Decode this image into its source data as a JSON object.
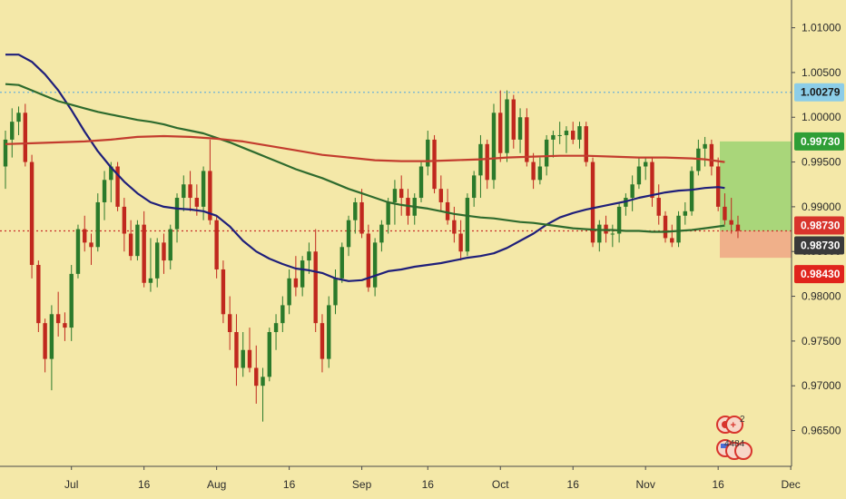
{
  "chart_data": {
    "type": "candlestick",
    "title": "",
    "ylim": [
      0.961,
      1.0131
    ],
    "y_ticks": [
      "0.96500",
      "0.97000",
      "0.97500",
      "0.98000",
      "0.98500",
      "0.99000",
      "0.99500",
      "1.00000",
      "1.00500",
      "1.01000"
    ],
    "x_tick_labels": [
      {
        "label": "Jul",
        "index": 10
      },
      {
        "label": "16",
        "index": 21
      },
      {
        "label": "Aug",
        "index": 32
      },
      {
        "label": "16",
        "index": 43
      },
      {
        "label": "Sep",
        "index": 54
      },
      {
        "label": "16",
        "index": 64
      },
      {
        "label": "Oct",
        "index": 75
      },
      {
        "label": "16",
        "index": 86
      },
      {
        "label": "Nov",
        "index": 97
      },
      {
        "label": "16",
        "index": 108
      },
      {
        "label": "Dec",
        "index": 119
      }
    ],
    "candles": [
      [
        0.9945,
        0.9985,
        0.992,
        0.9975
      ],
      [
        0.9975,
        1.001,
        0.9955,
        0.9995
      ],
      [
        0.9995,
        1.0012,
        0.998,
        1.0005
      ],
      [
        1.0005,
        1.0015,
        0.9945,
        0.995
      ],
      [
        0.995,
        0.9958,
        0.982,
        0.9835
      ],
      [
        0.9835,
        0.984,
        0.976,
        0.977
      ],
      [
        0.977,
        0.9775,
        0.9715,
        0.973
      ],
      [
        0.973,
        0.979,
        0.9695,
        0.978
      ],
      [
        0.978,
        0.9805,
        0.9755,
        0.977
      ],
      [
        0.977,
        0.9782,
        0.975,
        0.9765
      ],
      [
        0.9765,
        0.9835,
        0.975,
        0.9825
      ],
      [
        0.9825,
        0.988,
        0.982,
        0.9875
      ],
      [
        0.9875,
        0.989,
        0.985,
        0.986
      ],
      [
        0.986,
        0.987,
        0.9835,
        0.9855
      ],
      [
        0.9855,
        0.9915,
        0.985,
        0.9905
      ],
      [
        0.9905,
        0.994,
        0.9885,
        0.993
      ],
      [
        0.993,
        0.995,
        0.9905,
        0.9945
      ],
      [
        0.9945,
        0.995,
        0.9895,
        0.99
      ],
      [
        0.99,
        0.991,
        0.985,
        0.987
      ],
      [
        0.987,
        0.9885,
        0.984,
        0.9845
      ],
      [
        0.9845,
        0.9885,
        0.984,
        0.988
      ],
      [
        0.988,
        0.9895,
        0.981,
        0.9815
      ],
      [
        0.9815,
        0.9865,
        0.9805,
        0.982
      ],
      [
        0.982,
        0.9865,
        0.981,
        0.986
      ],
      [
        0.986,
        0.987,
        0.9825,
        0.984
      ],
      [
        0.984,
        0.988,
        0.983,
        0.9875
      ],
      [
        0.9875,
        0.9915,
        0.986,
        0.991
      ],
      [
        0.991,
        0.9935,
        0.9895,
        0.9925
      ],
      [
        0.9925,
        0.994,
        0.9895,
        0.991
      ],
      [
        0.991,
        0.9925,
        0.989,
        0.99
      ],
      [
        0.99,
        0.9945,
        0.9885,
        0.994
      ],
      [
        0.994,
        0.9975,
        0.988,
        0.9885
      ],
      [
        0.9885,
        0.989,
        0.982,
        0.983
      ],
      [
        0.983,
        0.984,
        0.977,
        0.978
      ],
      [
        0.978,
        0.98,
        0.974,
        0.976
      ],
      [
        0.976,
        0.978,
        0.97,
        0.972
      ],
      [
        0.972,
        0.976,
        0.971,
        0.974
      ],
      [
        0.974,
        0.9765,
        0.9715,
        0.972
      ],
      [
        0.972,
        0.9745,
        0.968,
        0.97
      ],
      [
        0.97,
        0.972,
        0.966,
        0.971
      ],
      [
        0.971,
        0.9765,
        0.9705,
        0.976
      ],
      [
        0.976,
        0.978,
        0.974,
        0.977
      ],
      [
        0.977,
        0.98,
        0.976,
        0.979
      ],
      [
        0.979,
        0.983,
        0.978,
        0.982
      ],
      [
        0.982,
        0.9845,
        0.98,
        0.981
      ],
      [
        0.981,
        0.9845,
        0.98,
        0.984
      ],
      [
        0.984,
        0.986,
        0.9825,
        0.985
      ],
      [
        0.985,
        0.9875,
        0.976,
        0.977
      ],
      [
        0.977,
        0.978,
        0.9715,
        0.973
      ],
      [
        0.973,
        0.98,
        0.972,
        0.979
      ],
      [
        0.979,
        0.983,
        0.978,
        0.982
      ],
      [
        0.982,
        0.986,
        0.9815,
        0.9855
      ],
      [
        0.9855,
        0.989,
        0.9845,
        0.9885
      ],
      [
        0.9885,
        0.991,
        0.987,
        0.9905
      ],
      [
        0.9905,
        0.992,
        0.9865,
        0.987
      ],
      [
        0.987,
        0.988,
        0.9805,
        0.981
      ],
      [
        0.981,
        0.9865,
        0.98,
        0.986
      ],
      [
        0.986,
        0.9885,
        0.985,
        0.988
      ],
      [
        0.988,
        0.991,
        0.987,
        0.9905
      ],
      [
        0.9905,
        0.993,
        0.988,
        0.992
      ],
      [
        0.992,
        0.9935,
        0.989,
        0.991
      ],
      [
        0.991,
        0.992,
        0.988,
        0.989
      ],
      [
        0.989,
        0.9915,
        0.988,
        0.991
      ],
      [
        0.991,
        0.995,
        0.9905,
        0.9945
      ],
      [
        0.9945,
        0.9985,
        0.9935,
        0.9975
      ],
      [
        0.9975,
        0.998,
        0.9915,
        0.992
      ],
      [
        0.992,
        0.9935,
        0.9895,
        0.9905
      ],
      [
        0.9905,
        0.992,
        0.988,
        0.9885
      ],
      [
        0.9885,
        0.99,
        0.986,
        0.987
      ],
      [
        0.987,
        0.9885,
        0.984,
        0.985
      ],
      [
        0.985,
        0.9915,
        0.9845,
        0.991
      ],
      [
        0.991,
        0.994,
        0.99,
        0.9935
      ],
      [
        0.9935,
        0.998,
        0.991,
        0.997
      ],
      [
        0.997,
        0.9975,
        0.992,
        0.993
      ],
      [
        0.993,
        1.0015,
        0.992,
        1.0005
      ],
      [
        1.0005,
        1.003,
        0.995,
        0.996
      ],
      [
        0.996,
        1.003,
        0.995,
        1.002
      ],
      [
        1.002,
        1.0025,
        0.9965,
        0.9975
      ],
      [
        0.9975,
        1.001,
        0.996,
        1.0
      ],
      [
        1.0,
        1.001,
        0.9945,
        0.995
      ],
      [
        0.995,
        0.996,
        0.992,
        0.993
      ],
      [
        0.993,
        0.9955,
        0.9925,
        0.9945
      ],
      [
        0.9945,
        0.998,
        0.9935,
        0.9975
      ],
      [
        0.9975,
        0.9985,
        0.9955,
        0.998
      ],
      [
        0.998,
        0.9995,
        0.997,
        0.998
      ],
      [
        0.998,
        0.999,
        0.996,
        0.9985
      ],
      [
        0.9985,
        0.9995,
        0.997,
        0.9975
      ],
      [
        0.9975,
        0.9995,
        0.9965,
        0.999
      ],
      [
        0.999,
        0.9995,
        0.9945,
        0.995
      ],
      [
        0.995,
        0.9955,
        0.9855,
        0.986
      ],
      [
        0.986,
        0.9885,
        0.985,
        0.988
      ],
      [
        0.988,
        0.989,
        0.986,
        0.987
      ],
      [
        0.987,
        0.988,
        0.9855,
        0.987
      ],
      [
        0.987,
        0.9905,
        0.986,
        0.99
      ],
      [
        0.99,
        0.9915,
        0.989,
        0.991
      ],
      [
        0.991,
        0.9935,
        0.9895,
        0.9925
      ],
      [
        0.9925,
        0.9955,
        0.992,
        0.9945
      ],
      [
        0.9945,
        0.9955,
        0.993,
        0.995
      ],
      [
        0.995,
        0.9955,
        0.99,
        0.991
      ],
      [
        0.991,
        0.9925,
        0.988,
        0.989
      ],
      [
        0.989,
        0.9895,
        0.986,
        0.9865
      ],
      [
        0.9865,
        0.988,
        0.9855,
        0.986
      ],
      [
        0.986,
        0.9895,
        0.9855,
        0.989
      ],
      [
        0.989,
        0.9905,
        0.988,
        0.9895
      ],
      [
        0.9895,
        0.9945,
        0.989,
        0.994
      ],
      [
        0.994,
        0.9975,
        0.9935,
        0.9965
      ],
      [
        0.9965,
        0.9978,
        0.9945,
        0.997
      ],
      [
        0.997,
        0.9975,
        0.9935,
        0.9945
      ],
      [
        0.9945,
        0.9955,
        0.9895,
        0.99
      ],
      [
        0.99,
        0.9915,
        0.988,
        0.9885
      ],
      [
        0.9885,
        0.991,
        0.987,
        0.988
      ],
      [
        0.988,
        0.989,
        0.9865,
        0.9873
      ]
    ],
    "indicators": [
      {
        "color": "#1f1f7a",
        "points": [
          [
            0,
            1.007
          ],
          [
            2,
            1.007
          ],
          [
            4,
            1.0062
          ],
          [
            6,
            1.0048
          ],
          [
            8,
            1.003
          ],
          [
            10,
            1.0008
          ],
          [
            12,
            0.9984
          ],
          [
            14,
            0.9962
          ],
          [
            16,
            0.9944
          ],
          [
            18,
            0.9928
          ],
          [
            20,
            0.9915
          ],
          [
            22,
            0.9905
          ],
          [
            24,
            0.99
          ],
          [
            26,
            0.9898
          ],
          [
            28,
            0.9897
          ],
          [
            30,
            0.9895
          ],
          [
            32,
            0.989
          ],
          [
            34,
            0.9878
          ],
          [
            36,
            0.9862
          ],
          [
            38,
            0.985
          ],
          [
            40,
            0.9842
          ],
          [
            42,
            0.9836
          ],
          [
            44,
            0.9831
          ],
          [
            46,
            0.9829
          ],
          [
            48,
            0.9826
          ],
          [
            50,
            0.982
          ],
          [
            52,
            0.9817
          ],
          [
            54,
            0.9818
          ],
          [
            56,
            0.9823
          ],
          [
            58,
            0.9828
          ],
          [
            60,
            0.983
          ],
          [
            62,
            0.9833
          ],
          [
            64,
            0.9835
          ],
          [
            66,
            0.9837
          ],
          [
            68,
            0.984
          ],
          [
            70,
            0.9843
          ],
          [
            72,
            0.9845
          ],
          [
            74,
            0.9848
          ],
          [
            76,
            0.9854
          ],
          [
            78,
            0.9862
          ],
          [
            80,
            0.987
          ],
          [
            82,
            0.988
          ],
          [
            84,
            0.9888
          ],
          [
            86,
            0.9893
          ],
          [
            88,
            0.9897
          ],
          [
            90,
            0.99
          ],
          [
            92,
            0.9903
          ],
          [
            94,
            0.9906
          ],
          [
            96,
            0.991
          ],
          [
            98,
            0.9913
          ],
          [
            100,
            0.9916
          ],
          [
            102,
            0.9918
          ],
          [
            104,
            0.9919
          ],
          [
            106,
            0.9921
          ],
          [
            108,
            0.9922
          ],
          [
            109,
            0.9921
          ]
        ]
      },
      {
        "color": "#2e6b2e",
        "points": [
          [
            0,
            1.0037
          ],
          [
            2,
            1.0036
          ],
          [
            4,
            1.003
          ],
          [
            6,
            1.0024
          ],
          [
            8,
            1.0018
          ],
          [
            10,
            1.0014
          ],
          [
            12,
            1.001
          ],
          [
            14,
            1.0006
          ],
          [
            16,
            1.0003
          ],
          [
            18,
            1.0
          ],
          [
            20,
            0.9997
          ],
          [
            22,
            0.9995
          ],
          [
            24,
            0.9992
          ],
          [
            26,
            0.9988
          ],
          [
            28,
            0.9985
          ],
          [
            30,
            0.9982
          ],
          [
            32,
            0.9977
          ],
          [
            34,
            0.9972
          ],
          [
            36,
            0.9966
          ],
          [
            38,
            0.996
          ],
          [
            40,
            0.9954
          ],
          [
            42,
            0.9948
          ],
          [
            44,
            0.9942
          ],
          [
            46,
            0.9937
          ],
          [
            48,
            0.9932
          ],
          [
            50,
            0.9926
          ],
          [
            52,
            0.992
          ],
          [
            54,
            0.9915
          ],
          [
            56,
            0.991
          ],
          [
            58,
            0.9905
          ],
          [
            60,
            0.9902
          ],
          [
            62,
            0.99
          ],
          [
            64,
            0.9898
          ],
          [
            66,
            0.9895
          ],
          [
            68,
            0.9892
          ],
          [
            70,
            0.989
          ],
          [
            72,
            0.9888
          ],
          [
            74,
            0.9887
          ],
          [
            76,
            0.9885
          ],
          [
            78,
            0.9883
          ],
          [
            80,
            0.9882
          ],
          [
            82,
            0.988
          ],
          [
            84,
            0.9878
          ],
          [
            86,
            0.9876
          ],
          [
            88,
            0.9875
          ],
          [
            90,
            0.9874
          ],
          [
            92,
            0.9874
          ],
          [
            94,
            0.9873
          ],
          [
            96,
            0.9873
          ],
          [
            98,
            0.9872
          ],
          [
            100,
            0.9872
          ],
          [
            102,
            0.9873
          ],
          [
            104,
            0.9874
          ],
          [
            106,
            0.9876
          ],
          [
            108,
            0.9878
          ],
          [
            109,
            0.9879
          ]
        ]
      },
      {
        "color": "#c33c2e",
        "points": [
          [
            0,
            0.997
          ],
          [
            4,
            0.9971
          ],
          [
            8,
            0.9972
          ],
          [
            12,
            0.9973
          ],
          [
            16,
            0.9975
          ],
          [
            20,
            0.9978
          ],
          [
            24,
            0.9979
          ],
          [
            28,
            0.9978
          ],
          [
            32,
            0.9976
          ],
          [
            36,
            0.9973
          ],
          [
            40,
            0.9968
          ],
          [
            44,
            0.9963
          ],
          [
            48,
            0.9958
          ],
          [
            52,
            0.9955
          ],
          [
            56,
            0.9952
          ],
          [
            60,
            0.9951
          ],
          [
            64,
            0.9951
          ],
          [
            68,
            0.9952
          ],
          [
            72,
            0.9953
          ],
          [
            76,
            0.9955
          ],
          [
            80,
            0.9956
          ],
          [
            84,
            0.9957
          ],
          [
            88,
            0.9957
          ],
          [
            92,
            0.9956
          ],
          [
            96,
            0.9955
          ],
          [
            100,
            0.9955
          ],
          [
            104,
            0.9954
          ],
          [
            106,
            0.9953
          ],
          [
            108,
            0.9951
          ],
          [
            109,
            0.995
          ]
        ]
      }
    ],
    "hlines": [
      {
        "price": 1.00279,
        "color": "#6cb2d8",
        "style": "dotted"
      },
      {
        "price": 0.9873,
        "color": "#c9302c",
        "style": "dotted"
      }
    ],
    "zones": [
      {
        "from": 0.9873,
        "to": 0.9973,
        "color": "#a9d67a"
      },
      {
        "from": 0.9843,
        "to": 0.9873,
        "color": "#f0b08a"
      }
    ],
    "price_badges": [
      {
        "price": 1.00279,
        "text": "1.00279",
        "bg": "#8ccde8",
        "fg": "dark"
      },
      {
        "price": 0.9973,
        "text": "0.99730",
        "bg": "#2f9e36",
        "fg": "light"
      },
      {
        "price": 0.9873,
        "text": "0.98730",
        "bg": "#d8342c",
        "fg": "light",
        "offset": -6
      },
      {
        "price": 0.9873,
        "text": "0.98730",
        "bg": "#3a3a3a",
        "fg": "light",
        "offset": 16
      },
      {
        "price": 0.9843,
        "text": "0.98430",
        "bg": "#e0241c",
        "fg": "light",
        "offset": 18
      }
    ],
    "colors": {
      "up": "#2b7a2b",
      "down": "#c0281e",
      "background": "#f4e8a8",
      "axis": "#4a4a4a"
    },
    "events": {
      "badge_count": "2",
      "counter": "4484"
    }
  }
}
